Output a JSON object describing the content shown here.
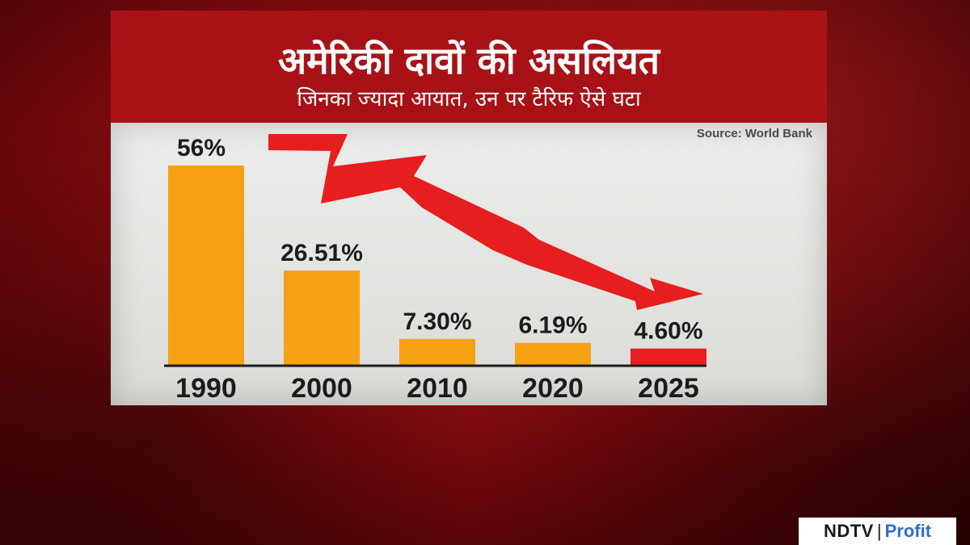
{
  "header": {
    "title": "अमेरिकी दावों की असलियत",
    "subtitle": "जिनका ज्यादा आयात, उन पर टैरिफ ऐसे घटा"
  },
  "source_note": "Source: World Bank",
  "colors": {
    "bar": "#f5a112",
    "bar_highlight": "#ea1d22",
    "header_bg": "#a81217",
    "arrow": "#e61e1e"
  },
  "chart_data": {
    "type": "bar",
    "categories": [
      "1990",
      "2000",
      "2010",
      "2020",
      "2025"
    ],
    "values": [
      56,
      26.51,
      7.3,
      6.19,
      4.6
    ],
    "data_labels": [
      "56%",
      "26.51%",
      "7.30%",
      "6.19%",
      "4.60%"
    ],
    "ylim": [
      0,
      56
    ],
    "highlight_index": 4,
    "annotation": "downward-trend-arrow",
    "grid": false
  },
  "logo": {
    "brand": "NDTV",
    "separator": "|",
    "product": "Profit"
  }
}
